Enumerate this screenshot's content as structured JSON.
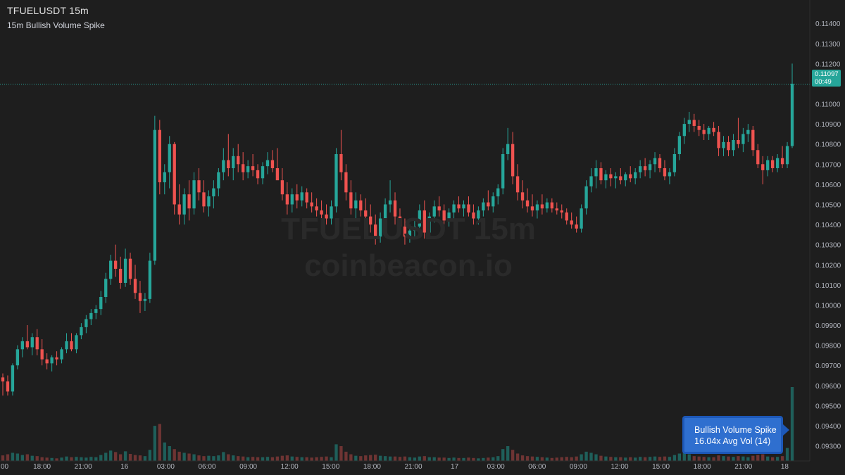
{
  "header": {
    "title": "TFUELUSDT 15m",
    "subtitle": "15m Bullish Volume Spike"
  },
  "watermark": {
    "line1": "TFUELUSDT 15m",
    "line2": "coinbeacon.io"
  },
  "last_price": {
    "value": "0.11097",
    "countdown": "00:49"
  },
  "alert": {
    "line1": "Bullish Volume Spike",
    "line2": "16.04x Avg Vol (14)"
  },
  "colors": {
    "background": "#1e1e1e",
    "up": "#26a69a",
    "down": "#ef5350",
    "up_volume": "#1f5f5a",
    "down_volume": "#6e3433",
    "axis_text": "#b2b5be",
    "price_line": "#26a69a",
    "alert": "#2f6fcf"
  },
  "chart_data": {
    "type": "candlestick",
    "symbol": "TFUELUSDT",
    "interval": "15m",
    "ylim": [
      0.0926,
      0.1146
    ],
    "y_ticks": [
      "0.11400",
      "0.11300",
      "0.11200",
      "0.11100",
      "0.11000",
      "0.10900",
      "0.10800",
      "0.10700",
      "0.10600",
      "0.10500",
      "0.10400",
      "0.10300",
      "0.10200",
      "0.10100",
      "0.10000",
      "0.09900",
      "0.09800",
      "0.09700",
      "0.09600",
      "0.09500",
      "0.09400",
      "0.09300"
    ],
    "x_ticks": [
      "00",
      "18:00",
      "21:00",
      "16",
      "03:00",
      "06:00",
      "09:00",
      "12:00",
      "15:00",
      "18:00",
      "21:00",
      "17",
      "03:00",
      "06:00",
      "09:00",
      "12:00",
      "15:00",
      "18:00",
      "21:00",
      "18"
    ],
    "last_price": 0.11097,
    "volume_spike_ratio": 16.04,
    "candles": [
      [
        0.0964,
        0.0966,
        0.0955,
        0.0962,
        1.5
      ],
      [
        0.0962,
        0.0965,
        0.0955,
        0.0957,
        1.8
      ],
      [
        0.0957,
        0.0971,
        0.0955,
        0.097,
        2.2
      ],
      [
        0.097,
        0.098,
        0.0968,
        0.0978,
        2.0
      ],
      [
        0.0978,
        0.0984,
        0.0974,
        0.0982,
        1.6
      ],
      [
        0.0982,
        0.099,
        0.0978,
        0.0979,
        1.8
      ],
      [
        0.0979,
        0.0986,
        0.0975,
        0.0984,
        1.4
      ],
      [
        0.0984,
        0.0988,
        0.0975,
        0.0978,
        1.3
      ],
      [
        0.0978,
        0.0983,
        0.097,
        0.0973,
        1.0
      ],
      [
        0.0973,
        0.0976,
        0.0968,
        0.0971,
        0.9
      ],
      [
        0.0971,
        0.0975,
        0.0967,
        0.0974,
        0.8
      ],
      [
        0.0974,
        0.0977,
        0.097,
        0.0973,
        0.7
      ],
      [
        0.0973,
        0.0979,
        0.0971,
        0.0978,
        0.9
      ],
      [
        0.0978,
        0.0986,
        0.0976,
        0.0982,
        1.2
      ],
      [
        0.0982,
        0.0986,
        0.0977,
        0.0978,
        1.0
      ],
      [
        0.0978,
        0.0986,
        0.0976,
        0.0985,
        1.1
      ],
      [
        0.0985,
        0.0991,
        0.0983,
        0.0989,
        1.0
      ],
      [
        0.0989,
        0.0995,
        0.0986,
        0.0993,
        0.9
      ],
      [
        0.0993,
        0.0998,
        0.099,
        0.0996,
        1.1
      ],
      [
        0.0996,
        0.1,
        0.0993,
        0.0998,
        1.0
      ],
      [
        0.0998,
        0.1007,
        0.0995,
        0.1004,
        1.6
      ],
      [
        0.1004,
        0.1016,
        0.1001,
        0.1013,
        2.2
      ],
      [
        0.1013,
        0.1025,
        0.101,
        0.1022,
        2.8
      ],
      [
        0.1022,
        0.103,
        0.1014,
        0.1018,
        2.4
      ],
      [
        0.1018,
        0.1024,
        0.1008,
        0.1011,
        1.8
      ],
      [
        0.1011,
        0.1028,
        0.1009,
        0.1023,
        2.6
      ],
      [
        0.1023,
        0.1026,
        0.101,
        0.1013,
        1.9
      ],
      [
        0.1013,
        0.102,
        0.1003,
        0.1006,
        1.6
      ],
      [
        0.1006,
        0.1012,
        0.0996,
        0.1002,
        1.5
      ],
      [
        0.1002,
        0.1006,
        0.0997,
        0.1003,
        1.3
      ],
      [
        0.1003,
        0.1026,
        0.1001,
        0.1022,
        3.0
      ],
      [
        0.1022,
        0.1094,
        0.102,
        0.1087,
        9.5
      ],
      [
        0.1087,
        0.1092,
        0.1055,
        0.1061,
        10.0
      ],
      [
        0.1061,
        0.107,
        0.1055,
        0.1066,
        5.0
      ],
      [
        0.1066,
        0.1084,
        0.1058,
        0.108,
        4.0
      ],
      [
        0.108,
        0.1081,
        0.1045,
        0.105,
        3.2
      ],
      [
        0.105,
        0.106,
        0.104,
        0.1045,
        2.5
      ],
      [
        0.1045,
        0.1058,
        0.104,
        0.1055,
        2.2
      ],
      [
        0.1055,
        0.1062,
        0.1042,
        0.1048,
        2.0
      ],
      [
        0.1048,
        0.1066,
        0.1045,
        0.1062,
        1.8
      ],
      [
        0.1062,
        0.1068,
        0.1052,
        0.1056,
        1.5
      ],
      [
        0.1056,
        0.1062,
        0.1046,
        0.1049,
        1.3
      ],
      [
        0.1049,
        0.1057,
        0.1044,
        0.1054,
        1.4
      ],
      [
        0.1054,
        0.1062,
        0.1048,
        0.1058,
        1.3
      ],
      [
        0.1058,
        0.1068,
        0.1054,
        0.1066,
        1.5
      ],
      [
        0.1066,
        0.1078,
        0.1062,
        0.1072,
        2.4
      ],
      [
        0.1072,
        0.1085,
        0.1064,
        0.1068,
        1.8
      ],
      [
        0.1068,
        0.1078,
        0.1062,
        0.1074,
        1.5
      ],
      [
        0.1074,
        0.108,
        0.1066,
        0.107,
        1.3
      ],
      [
        0.107,
        0.1076,
        0.1062,
        0.1066,
        1.2
      ],
      [
        0.1066,
        0.1072,
        0.1063,
        0.1069,
        1.0
      ],
      [
        0.1069,
        0.1075,
        0.1064,
        0.1067,
        1.1
      ],
      [
        0.1067,
        0.107,
        0.106,
        0.1063,
        1.0
      ],
      [
        0.1063,
        0.1071,
        0.106,
        0.1069,
        1.0
      ],
      [
        0.1069,
        0.1076,
        0.1065,
        0.1072,
        1.1
      ],
      [
        0.1072,
        0.1077,
        0.1066,
        0.1068,
        1.0
      ],
      [
        0.1068,
        0.1078,
        0.1064,
        0.1062,
        1.2
      ],
      [
        0.1062,
        0.1068,
        0.1052,
        0.1055,
        1.4
      ],
      [
        0.1055,
        0.1061,
        0.1045,
        0.105,
        1.5
      ],
      [
        0.105,
        0.1058,
        0.1046,
        0.1055,
        1.2
      ],
      [
        0.1055,
        0.106,
        0.1048,
        0.1052,
        1.1
      ],
      [
        0.1052,
        0.1059,
        0.1049,
        0.1056,
        1.0
      ],
      [
        0.1056,
        0.1058,
        0.1048,
        0.1051,
        1.0
      ],
      [
        0.1051,
        0.1056,
        0.1046,
        0.1049,
        0.9
      ],
      [
        0.1049,
        0.1053,
        0.1044,
        0.1047,
        1.0
      ],
      [
        0.1047,
        0.1052,
        0.1042,
        0.1045,
        1.1
      ],
      [
        0.1045,
        0.105,
        0.104,
        0.1043,
        1.2
      ],
      [
        0.1043,
        0.1052,
        0.104,
        0.1049,
        1.0
      ],
      [
        0.1049,
        0.1078,
        0.1046,
        0.1075,
        4.5
      ],
      [
        0.1075,
        0.1087,
        0.1062,
        0.1066,
        4.0
      ],
      [
        0.1066,
        0.107,
        0.1052,
        0.1056,
        2.5
      ],
      [
        0.1056,
        0.1062,
        0.1045,
        0.1048,
        1.8
      ],
      [
        0.1048,
        0.1056,
        0.1043,
        0.1052,
        1.4
      ],
      [
        0.1052,
        0.1055,
        0.1044,
        0.1047,
        1.3
      ],
      [
        0.1047,
        0.1053,
        0.104,
        0.1044,
        1.5
      ],
      [
        0.1044,
        0.105,
        0.1036,
        0.104,
        1.6
      ],
      [
        0.104,
        0.1045,
        0.103,
        0.1034,
        1.7
      ],
      [
        0.1034,
        0.1046,
        0.1031,
        0.1043,
        1.4
      ],
      [
        0.1043,
        0.1053,
        0.104,
        0.105,
        1.3
      ],
      [
        0.105,
        0.1062,
        0.1046,
        0.1052,
        1.2
      ],
      [
        0.1052,
        0.1056,
        0.104,
        0.1044,
        1.2
      ],
      [
        0.1044,
        0.1048,
        0.1036,
        0.1039,
        1.1
      ],
      [
        0.1039,
        0.1043,
        0.103,
        0.1034,
        1.2
      ],
      [
        0.1034,
        0.104,
        0.1031,
        0.1037,
        1.0
      ],
      [
        0.1037,
        0.1043,
        0.1034,
        0.1039,
        0.9
      ],
      [
        0.1039,
        0.105,
        0.1036,
        0.1047,
        1.2
      ],
      [
        0.1047,
        0.1052,
        0.1033,
        0.1036,
        1.3
      ],
      [
        0.1036,
        0.1046,
        0.1034,
        0.1044,
        1.0
      ],
      [
        0.1044,
        0.1052,
        0.1041,
        0.1049,
        1.0
      ],
      [
        0.1049,
        0.1054,
        0.1044,
        0.1047,
        0.9
      ],
      [
        0.1047,
        0.105,
        0.104,
        0.1042,
        0.9
      ],
      [
        0.1042,
        0.1048,
        0.1039,
        0.1046,
        0.8
      ],
      [
        0.1046,
        0.1052,
        0.1043,
        0.105,
        0.9
      ],
      [
        0.105,
        0.1054,
        0.1046,
        0.1048,
        0.8
      ],
      [
        0.1048,
        0.1052,
        0.1044,
        0.105,
        0.8
      ],
      [
        0.105,
        0.1054,
        0.1044,
        0.1046,
        0.9
      ],
      [
        0.1046,
        0.105,
        0.104,
        0.1043,
        0.8
      ],
      [
        0.1043,
        0.1049,
        0.104,
        0.1047,
        0.7
      ],
      [
        0.1047,
        0.1053,
        0.1044,
        0.1051,
        0.8
      ],
      [
        0.1051,
        0.1057,
        0.1047,
        0.1049,
        0.9
      ],
      [
        0.1049,
        0.1056,
        0.1046,
        0.1054,
        1.0
      ],
      [
        0.1054,
        0.106,
        0.105,
        0.1058,
        1.3
      ],
      [
        0.1058,
        0.1078,
        0.1055,
        0.1075,
        3.2
      ],
      [
        0.1075,
        0.1088,
        0.1072,
        0.108,
        4.0
      ],
      [
        0.108,
        0.1086,
        0.106,
        0.1064,
        3.0
      ],
      [
        0.1064,
        0.107,
        0.1052,
        0.1056,
        2.0
      ],
      [
        0.1056,
        0.1062,
        0.1048,
        0.1052,
        1.5
      ],
      [
        0.1052,
        0.1058,
        0.1046,
        0.1049,
        1.3
      ],
      [
        0.1049,
        0.1055,
        0.1044,
        0.1047,
        1.2
      ],
      [
        0.1047,
        0.1052,
        0.1043,
        0.105,
        1.1
      ],
      [
        0.105,
        0.1055,
        0.1045,
        0.1048,
        1.0
      ],
      [
        0.1048,
        0.1053,
        0.1046,
        0.1051,
        0.9
      ],
      [
        0.1051,
        0.1053,
        0.1046,
        0.1048,
        0.8
      ],
      [
        0.1048,
        0.1051,
        0.1045,
        0.1047,
        0.9
      ],
      [
        0.1047,
        0.105,
        0.1043,
        0.1046,
        1.0
      ],
      [
        0.1046,
        0.1048,
        0.104,
        0.1042,
        1.1
      ],
      [
        0.1042,
        0.1046,
        0.1038,
        0.104,
        1.0
      ],
      [
        0.104,
        0.1044,
        0.1036,
        0.1038,
        1.2
      ],
      [
        0.1038,
        0.105,
        0.1036,
        0.1048,
        1.8
      ],
      [
        0.1048,
        0.1062,
        0.1045,
        0.1059,
        2.5
      ],
      [
        0.1059,
        0.1068,
        0.1056,
        0.1064,
        2.2
      ],
      [
        0.1064,
        0.1072,
        0.1058,
        0.1068,
        1.8
      ],
      [
        0.1068,
        0.1071,
        0.106,
        0.1062,
        1.4
      ],
      [
        0.1062,
        0.1067,
        0.1058,
        0.1065,
        1.2
      ],
      [
        0.1065,
        0.1068,
        0.1059,
        0.1063,
        1.1
      ],
      [
        0.1063,
        0.1066,
        0.1058,
        0.1064,
        1.0
      ],
      [
        0.1064,
        0.1068,
        0.106,
        0.1062,
        1.0
      ],
      [
        0.1062,
        0.1066,
        0.1059,
        0.1065,
        0.9
      ],
      [
        0.1065,
        0.1069,
        0.1061,
        0.1063,
        1.0
      ],
      [
        0.1063,
        0.1068,
        0.106,
        0.1066,
        0.9
      ],
      [
        0.1066,
        0.1072,
        0.1063,
        0.1069,
        1.1
      ],
      [
        0.1069,
        0.1073,
        0.1064,
        0.1067,
        1.0
      ],
      [
        0.1067,
        0.1072,
        0.1063,
        0.107,
        1.1
      ],
      [
        0.107,
        0.1076,
        0.1066,
        0.1073,
        1.2
      ],
      [
        0.1073,
        0.1075,
        0.1066,
        0.1068,
        1.1
      ],
      [
        0.1068,
        0.1072,
        0.1062,
        0.1064,
        1.2
      ],
      [
        0.1064,
        0.1068,
        0.106,
        0.1066,
        1.1
      ],
      [
        0.1066,
        0.1078,
        0.1064,
        0.1075,
        1.6
      ],
      [
        0.1075,
        0.1086,
        0.1072,
        0.1084,
        2.0
      ],
      [
        0.1084,
        0.1093,
        0.108,
        0.109,
        2.2
      ],
      [
        0.109,
        0.1096,
        0.1086,
        0.1092,
        1.8
      ],
      [
        0.1092,
        0.1095,
        0.1086,
        0.1089,
        1.3
      ],
      [
        0.1089,
        0.1092,
        0.1084,
        0.1087,
        1.2
      ],
      [
        0.1087,
        0.109,
        0.1082,
        0.1085,
        1.1
      ],
      [
        0.1085,
        0.1089,
        0.1082,
        0.1088,
        1.0
      ],
      [
        0.1088,
        0.1091,
        0.1084,
        0.1086,
        1.0
      ],
      [
        0.1086,
        0.1089,
        0.1074,
        0.1078,
        1.5
      ],
      [
        0.1078,
        0.1084,
        0.1074,
        0.1081,
        1.3
      ],
      [
        0.1081,
        0.1084,
        0.1074,
        0.1077,
        1.2
      ],
      [
        0.1077,
        0.1085,
        0.1074,
        0.1082,
        1.1
      ],
      [
        0.1082,
        0.1093,
        0.1078,
        0.108,
        1.3
      ],
      [
        0.108,
        0.1088,
        0.1076,
        0.1085,
        1.2
      ],
      [
        0.1085,
        0.109,
        0.1081,
        0.1087,
        1.0
      ],
      [
        0.1087,
        0.1089,
        0.1074,
        0.1077,
        1.4
      ],
      [
        0.1077,
        0.108,
        0.1068,
        0.107,
        1.6
      ],
      [
        0.107,
        0.1074,
        0.106,
        0.1067,
        1.8
      ],
      [
        0.1067,
        0.1074,
        0.1064,
        0.1072,
        1.2
      ],
      [
        0.1072,
        0.1074,
        0.1066,
        0.1068,
        1.0
      ],
      [
        0.1068,
        0.1075,
        0.1066,
        0.1073,
        1.1
      ],
      [
        0.1073,
        0.1079,
        0.1068,
        0.107,
        1.3
      ],
      [
        0.107,
        0.1081,
        0.1068,
        0.1079,
        3.5
      ],
      [
        0.1079,
        0.112,
        0.1078,
        0.111,
        20.0
      ]
    ]
  }
}
